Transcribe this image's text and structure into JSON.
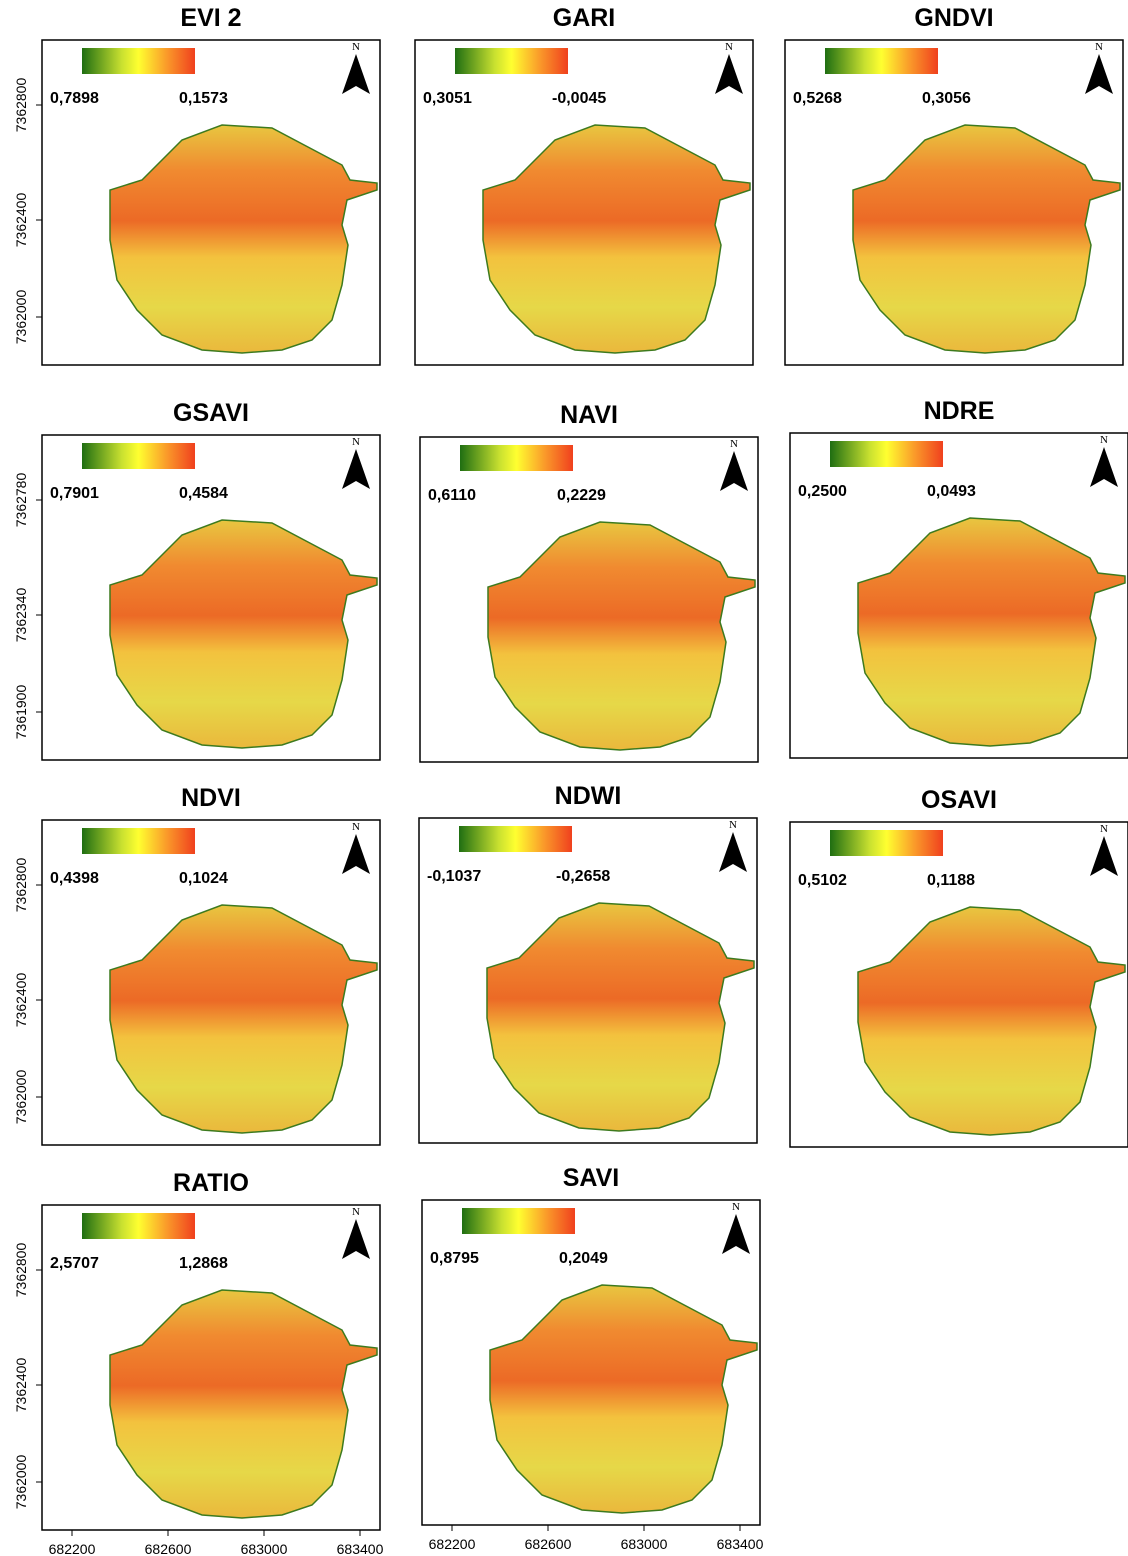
{
  "panels": [
    {
      "title": "EVI 2",
      "legend_left": "0,7898",
      "legend_right": "0,1573",
      "north": "N",
      "y_ticks": [
        "7362800",
        "7362400",
        "7362000"
      ]
    },
    {
      "title": "GARI",
      "legend_left": "0,3051",
      "legend_right": "-0,0045",
      "north": "N"
    },
    {
      "title": "GNDVI",
      "legend_left": "0,5268",
      "legend_right": "0,3056",
      "north": "N"
    },
    {
      "title": "GSAVI",
      "legend_left": "0,7901",
      "legend_right": "0,4584",
      "north": "N",
      "y_ticks": [
        "7362780",
        "7362340",
        "7361900"
      ]
    },
    {
      "title": "NAVI",
      "legend_left": "0,6110",
      "legend_right": "0,2229",
      "north": "N"
    },
    {
      "title": "NDRE",
      "legend_left": "0,2500",
      "legend_right": "0,0493",
      "north": "N"
    },
    {
      "title": "NDVI",
      "legend_left": "0,4398",
      "legend_right": "0,1024",
      "north": "N",
      "y_ticks": [
        "7362800",
        "7362400",
        "7362000"
      ]
    },
    {
      "title": "NDWI",
      "legend_left": "-0,1037",
      "legend_right": "-0,2658",
      "north": "N"
    },
    {
      "title": "OSAVI",
      "legend_left": "0,5102",
      "legend_right": "0,1188",
      "north": "N"
    },
    {
      "title": "RATIO",
      "legend_left": "2,5707",
      "legend_right": "1,2868",
      "north": "N",
      "y_ticks": [
        "7362800",
        "7362400",
        "7362000"
      ],
      "x_ticks": [
        "682200",
        "682600",
        "683000",
        "683400"
      ]
    },
    {
      "title": "SAVI",
      "legend_left": "0,8795",
      "legend_right": "0,2049",
      "north": "N",
      "x_ticks": [
        "682200",
        "682600",
        "683000",
        "683400"
      ]
    }
  ]
}
